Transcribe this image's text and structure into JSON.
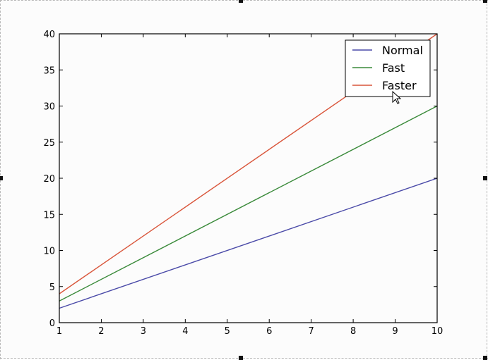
{
  "chart_data": {
    "type": "line",
    "title": "",
    "xlabel": "",
    "ylabel": "",
    "xlim": [
      1,
      10
    ],
    "ylim": [
      0,
      40
    ],
    "xticks": [
      "1",
      "2",
      "3",
      "4",
      "5",
      "6",
      "7",
      "8",
      "9",
      "10"
    ],
    "yticks": [
      "0",
      "5",
      "10",
      "15",
      "20",
      "25",
      "30",
      "35",
      "40"
    ],
    "grid": false,
    "legend_position": "top-right",
    "series": [
      {
        "name": "Normal",
        "color": "#4a4aa8",
        "x": [
          1,
          10
        ],
        "y": [
          2,
          20
        ]
      },
      {
        "name": "Fast",
        "color": "#3a8a3a",
        "x": [
          1,
          10
        ],
        "y": [
          3,
          30
        ]
      },
      {
        "name": "Faster",
        "color": "#d9553a",
        "x": [
          1,
          10
        ],
        "y": [
          4,
          40
        ]
      }
    ]
  },
  "icons": {
    "cursor": "mouse-pointer-icon"
  }
}
